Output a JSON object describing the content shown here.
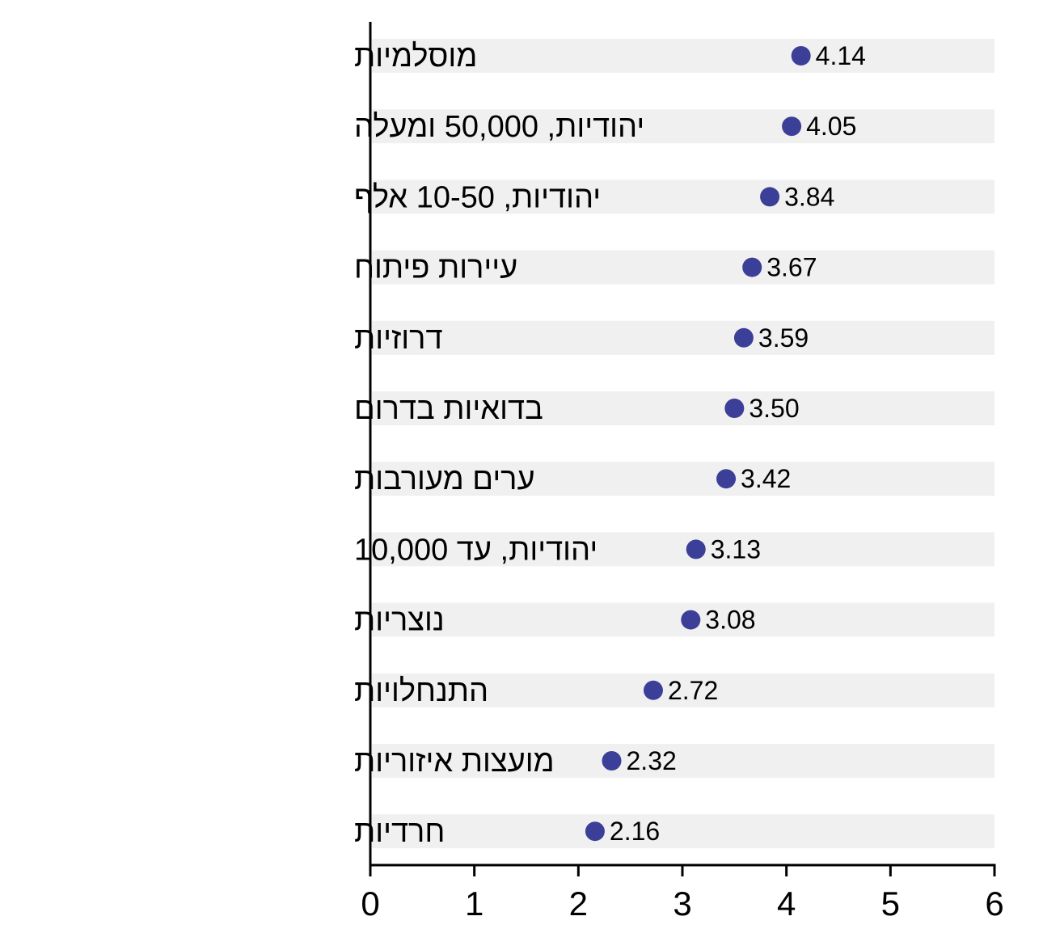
{
  "chart_data": {
    "type": "dot",
    "categories": [
      "מוסלמיות",
      "יהודיות, 50,000 ומעלה",
      "יהודיות, 10-50 אלף",
      "עיירות פיתוח",
      "דרוזיות",
      "בדואיות בדרום",
      "ערים מעורבות",
      "יהודיות, עד 10,000",
      "נוצריות",
      "התנחלויות",
      "מועצות איזוריות",
      "חרדיות"
    ],
    "values": [
      4.14,
      4.05,
      3.84,
      3.67,
      3.59,
      3.5,
      3.42,
      3.13,
      3.08,
      2.72,
      2.32,
      2.16
    ],
    "value_labels": [
      "4.14",
      "4.05",
      "3.84",
      "3.67",
      "3.59",
      "3.50",
      "3.42",
      "3.13",
      "3.08",
      "2.72",
      "2.32",
      "2.16"
    ],
    "xlim": [
      0,
      6
    ],
    "xticks": [
      "0",
      "1",
      "2",
      "3",
      "4",
      "5",
      "6"
    ],
    "title": "",
    "xlabel": "",
    "ylabel": "",
    "grid": false,
    "colors": {
      "dot": "#3b3f98",
      "band": "#f0f0f0",
      "axis": "#000000"
    }
  }
}
